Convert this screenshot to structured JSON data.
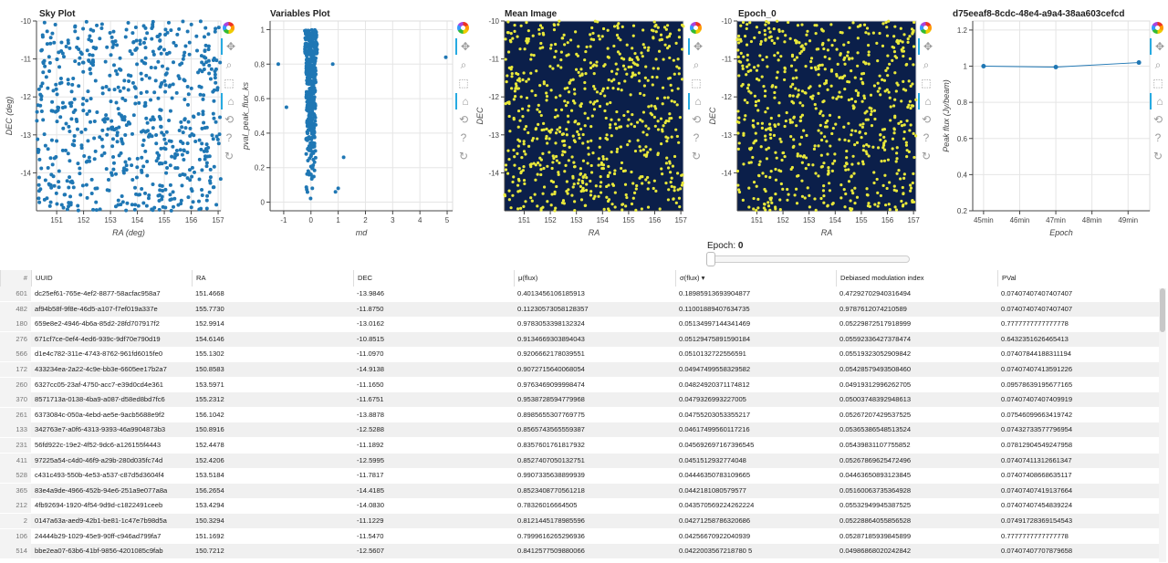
{
  "plots": {
    "sky": {
      "title": "Sky Plot",
      "xlabel": "RA (deg)",
      "ylabel": "DEC (deg)"
    },
    "variables": {
      "title": "Variables Plot",
      "xlabel": "md",
      "ylabel": "pval_peak_flux_ks"
    },
    "mean": {
      "title": "Mean Image",
      "xlabel": "RA",
      "ylabel": "DEC"
    },
    "epoch": {
      "title": "Epoch_0",
      "xlabel": "RA",
      "ylabel": "DEC"
    },
    "lightcurve": {
      "title": "d75eeaf8-8cdc-48e4-a9a4-38aa603cefcd",
      "xlabel": "Epoch",
      "ylabel": "Peak flux (Jy/beam)"
    }
  },
  "chart_data": [
    {
      "type": "scatter",
      "title": "Sky Plot",
      "xlabel": "RA (deg)",
      "ylabel": "DEC (deg)",
      "xlim": [
        150.25,
        157.1
      ],
      "ylim": [
        -15,
        -10
      ],
      "xticks": [
        "151",
        "152",
        "153",
        "154",
        "155",
        "156",
        "157"
      ],
      "yticks": [
        "-10",
        "-11",
        "-12",
        "-13",
        "-14"
      ],
      "color": "#1f77b4",
      "n_points": 700,
      "grid": true
    },
    {
      "type": "scatter",
      "title": "Variables Plot",
      "xlabel": "md",
      "ylabel": "pval_peak_flux_ks",
      "xlim": [
        -1.5,
        5.2
      ],
      "ylim": [
        -0.05,
        1.05
      ],
      "xticks": [
        "-1",
        "0",
        "1",
        "2",
        "3",
        "4",
        "5"
      ],
      "yticks": [
        "0",
        "0.2",
        "0.4",
        "0.6",
        "0.8",
        "1"
      ],
      "color": "#1f77b4",
      "x": [
        -1.2,
        -0.9,
        0.8,
        0.9,
        1.0,
        1.2,
        4.95,
        0.05,
        -0.1,
        0.1
      ],
      "y": [
        0.8,
        0.55,
        0.8,
        0.06,
        0.08,
        0.26,
        0.84,
        0.08,
        0.18,
        0.4
      ],
      "grid": true
    },
    {
      "type": "scatter",
      "title": "Mean Image",
      "xlabel": "RA",
      "ylabel": "DEC",
      "xlim": [
        150.25,
        157.1
      ],
      "ylim": [
        -15,
        -10
      ],
      "xticks": [
        "151",
        "152",
        "153",
        "154",
        "155",
        "156",
        "157"
      ],
      "yticks": [
        "-10",
        "-11",
        "-12",
        "-13",
        "-14"
      ],
      "background": "#0b1f4a",
      "color": "#e8e83a"
    },
    {
      "type": "scatter",
      "title": "Epoch_0",
      "xlabel": "RA",
      "ylabel": "DEC",
      "xlim": [
        150.25,
        157.1
      ],
      "ylim": [
        -15,
        -10
      ],
      "xticks": [
        "151",
        "152",
        "153",
        "154",
        "155",
        "156",
        "157"
      ],
      "yticks": [
        "-10",
        "-11",
        "-12",
        "-13",
        "-14"
      ],
      "background": "#0b1f4a",
      "color": "#e8e83a"
    },
    {
      "type": "line",
      "title": "d75eeaf8-8cdc-48e4-a9a4-38aa603cefcd",
      "xlabel": "Epoch",
      "ylabel": "Peak flux (Jy/beam)",
      "xlim": [
        44.7,
        49.6
      ],
      "ylim": [
        0.2,
        1.25
      ],
      "xticks": [
        "45min",
        "46min",
        "47min",
        "48min",
        "49min"
      ],
      "xtick_values": [
        45,
        46,
        47,
        48,
        49
      ],
      "yticks": [
        "0.2",
        "0.4",
        "0.6",
        "0.8",
        "1",
        "1.2"
      ],
      "x": [
        45,
        47,
        49.3
      ],
      "y": [
        1.0,
        0.995,
        1.02
      ],
      "color": "#1f77b4",
      "grid": true
    }
  ],
  "slider": {
    "label": "Epoch:",
    "value": "0"
  },
  "table": {
    "columns": [
      "#",
      "UUID",
      "RA",
      "DEC",
      "μ(flux)",
      "σ(flux) ▾",
      "Debiased modulation index",
      "PVal"
    ],
    "rows": [
      [
        "601",
        "dc25ef61-765e-4ef2-8877-58acfac958a7",
        "151.4668",
        "-13.9846",
        "0.4013456106185913",
        "0.18985913693904877",
        "0.47292702940316494",
        "0.07407407407407407"
      ],
      [
        "482",
        "af94b58f-9f8e-46d5-a107-f7ef019a337e",
        "155.7730",
        "-11.8750",
        "0.11230573058128357",
        "0.11001889407634735",
        "0.9787612074210589",
        "0.07407407407407407"
      ],
      [
        "180",
        "659e8e2-4946-4b6a-85d2-28fd707917f2",
        "152.9914",
        "-13.0162",
        "0.9783053398132324",
        "0.05134997144341469",
        "0.05229872517918999",
        "0.7777777777777778"
      ],
      [
        "276",
        "671cf7ce-0ef4-4ed6-939c-9df70e790d19",
        "154.6146",
        "-10.8515",
        "0.9134669303894043",
        "0.05129475891590184",
        "0.05592336427378474",
        "0.6432351626465413"
      ],
      [
        "566",
        "d1e4c782-311e-4743-8762-961fd6015fe0",
        "155.1302",
        "-11.0970",
        "0.9206662178039551",
        "0.0510132722556591",
        "0.05519323052909842",
        "0.07407844188311194"
      ],
      [
        "172",
        "433234ea-2a22-4c9e-bb3e-6605ee17b2a7",
        "150.8583",
        "-14.9138",
        "0.9072715640068054",
        "0.04947499558329582",
        "0.05428579493508460",
        "0.07407407413591226"
      ],
      [
        "260",
        "6327cc05-23af-4750-acc7-e39d0cd4e361",
        "153.5971",
        "-11.1650",
        "0.9763469099998474",
        "0.04824920371174812",
        "0.04919312996262705",
        "0.09578639195677165"
      ],
      [
        "370",
        "8571713a-0138-4ba9-a087-d58ed8bd7fc6",
        "155.2312",
        "-11.6751",
        "0.9538728594779968",
        "0.0479326993227005",
        "0.05003748392948613",
        "0.07407407407409919"
      ],
      [
        "261",
        "6373084c-050a-4ebd-ae5e-9acb5688e9f2",
        "156.1042",
        "-13.8878",
        "0.8985655307769775",
        "0.04755203053355217",
        "0.05267207429537525",
        "0.07546099663419742"
      ],
      [
        "133",
        "342763e7-a0f6-4313-9393-46a9904873b3",
        "150.8916",
        "-12.5288",
        "0.8565743565559387",
        "0.04617499560117216",
        "0.05365386548513524",
        "0.07432733577796954"
      ],
      [
        "231",
        "56fd922c-19e2-4f52-9dc6-a126155f4443",
        "152.4478",
        "-11.1892",
        "0.8357601761817932",
        "0.045692697167396545",
        "0.05439831107755852",
        "0.07812904549247958"
      ],
      [
        "411",
        "97225a54-c4d0-46f9-a29b-280d035fc74d",
        "152.4206",
        "-12.5995",
        "0.8527407050132751",
        "0.0451512932774048",
        "0.05267869625472496",
        "0.07407411312661347"
      ],
      [
        "528",
        "c431c493-550b-4e53-a537-c87d5d3604f4",
        "153.5184",
        "-11.7817",
        "0.9907335638899939",
        "0.04446350783109665",
        "0.04463650893123845",
        "0.07407408668635117"
      ],
      [
        "365",
        "83e4a9de-4966-452b-94e6-251a9e077a8a",
        "156.2654",
        "-14.4185",
        "0.8523408770561218",
        "0.0442181080579577",
        "0.05160063735364928",
        "0.07407407419137664"
      ],
      [
        "212",
        "4fb92694-1920-4f54-9d9d-c1822491ceeb",
        "153.4294",
        "-14.0830",
        "0.78326016664505",
        "0.043570569224262224",
        "0.05532949945387525",
        "0.07407407454839224"
      ],
      [
        "2",
        "0147a63a-aed9-42b1-be81-1c47e7b98d5a",
        "150.3294",
        "-11.1229",
        "0.8121445178985596",
        "0.04271258786320686",
        "0.05228864055856528",
        "0.07491728369154543"
      ],
      [
        "106",
        "24444b29-1029-45e9-90ff-c946ad799fa7",
        "151.1692",
        "-11.5470",
        "0.7999616265296936",
        "0.04256670922040939",
        "0.05287185939845899",
        "0.7777777777777778"
      ],
      [
        "514",
        "bbe2ea07-63b6-41bf-9856-4201085c9fab",
        "150.7212",
        "-12.5607",
        "0.8412577509880066",
        "0.0422003567218780 5",
        "0.04986868020242842",
        "0.07407407707879658"
      ]
    ]
  }
}
